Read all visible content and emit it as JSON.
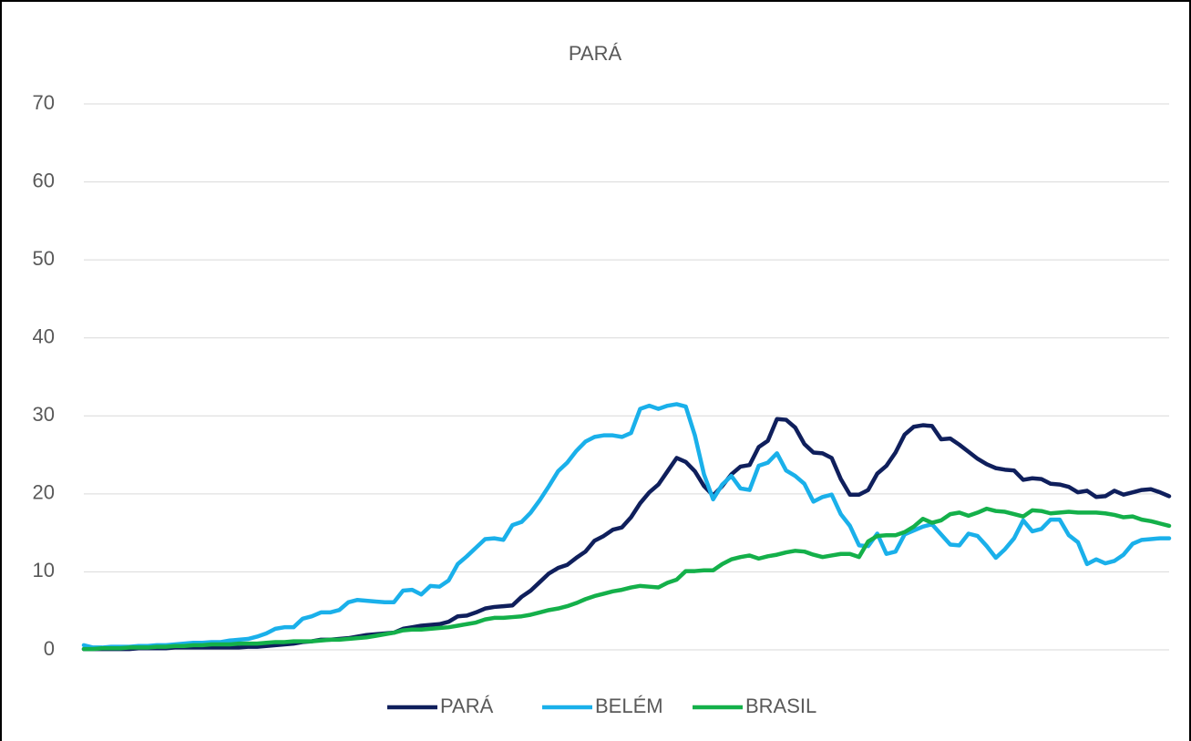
{
  "chart_data": {
    "type": "line",
    "title": "PARÁ",
    "categories": [
      null,
      null,
      null,
      null,
      null,
      null,
      null,
      null,
      null,
      null,
      null,
      null,
      null,
      null,
      null,
      null,
      null,
      null,
      null,
      null,
      null,
      null,
      null,
      null,
      null,
      null,
      null,
      null,
      null,
      null,
      null,
      null,
      null,
      null,
      null,
      null,
      null,
      null,
      null,
      null,
      null,
      null,
      null,
      null,
      null,
      null,
      null,
      null,
      null,
      null,
      null,
      null,
      null,
      null,
      null,
      null,
      null,
      null,
      null,
      null,
      null,
      null,
      null,
      null,
      null,
      null,
      null,
      null,
      null,
      null,
      null,
      null,
      null,
      null,
      null,
      null,
      null,
      null,
      null,
      null,
      null,
      null,
      null,
      null,
      null,
      null,
      null,
      null,
      null,
      null,
      null,
      null,
      null,
      null,
      null,
      null,
      null,
      null,
      null,
      null,
      null,
      null,
      null,
      null,
      null,
      null,
      null,
      null,
      null,
      null,
      null,
      null,
      null,
      null,
      null,
      null,
      null,
      null,
      null,
      null
    ],
    "series": [
      {
        "name": "PARÁ",
        "color": "#0f1f5c",
        "values": [
          0.1,
          0.1,
          0.1,
          0.1,
          0.1,
          0.1,
          0.2,
          0.2,
          0.2,
          0.2,
          0.3,
          0.3,
          0.3,
          0.3,
          0.3,
          0.3,
          0.3,
          0.3,
          0.4,
          0.4,
          0.5,
          0.6,
          0.7,
          0.8,
          1.0,
          1.1,
          1.3,
          1.3,
          1.4,
          1.5,
          1.7,
          1.9,
          2.0,
          2.1,
          2.2,
          2.7,
          2.9,
          3.1,
          3.2,
          3.3,
          3.6,
          4.3,
          4.4,
          4.8,
          5.3,
          5.5,
          5.6,
          5.7,
          6.8,
          7.6,
          8.7,
          9.8,
          10.5,
          10.9,
          11.8,
          12.6,
          14.0,
          14.6,
          15.4,
          15.7,
          17.0,
          18.8,
          20.2,
          21.2,
          22.9,
          24.6,
          24.1,
          22.9,
          21.0,
          19.8,
          21.0,
          22.5,
          23.5,
          23.7,
          26.0,
          26.8,
          29.6,
          29.5,
          28.5,
          26.4,
          25.3,
          25.2,
          24.6,
          21.9,
          19.9,
          19.9,
          20.5,
          22.6,
          23.6,
          25.3,
          27.6,
          28.6,
          28.8,
          28.7,
          27.0,
          27.1,
          26.3,
          25.4,
          24.5,
          23.8,
          23.3,
          23.1,
          23.0,
          21.8,
          22.0,
          21.9,
          21.3,
          21.2,
          20.9,
          20.2,
          20.4,
          19.6,
          19.7,
          20.4,
          19.9,
          20.2,
          20.5,
          20.6,
          20.2,
          19.7
        ]
      },
      {
        "name": "BELÉM",
        "color": "#1ab0ea",
        "values": [
          0.6,
          0.3,
          0.3,
          0.4,
          0.4,
          0.4,
          0.5,
          0.5,
          0.6,
          0.6,
          0.7,
          0.8,
          0.9,
          0.9,
          1.0,
          1.0,
          1.2,
          1.3,
          1.4,
          1.7,
          2.1,
          2.7,
          2.9,
          2.9,
          4.0,
          4.3,
          4.8,
          4.8,
          5.1,
          6.1,
          6.4,
          6.3,
          6.2,
          6.1,
          6.1,
          7.6,
          7.7,
          7.1,
          8.2,
          8.1,
          8.9,
          11.0,
          12.0,
          13.1,
          14.2,
          14.3,
          14.1,
          16.0,
          16.4,
          17.6,
          19.2,
          21.0,
          22.9,
          24.0,
          25.5,
          26.7,
          27.3,
          27.5,
          27.5,
          27.3,
          27.8,
          30.9,
          31.3,
          30.9,
          31.3,
          31.5,
          31.2,
          27.5,
          22.5,
          19.3,
          21.2,
          22.3,
          20.7,
          20.5,
          23.6,
          24.0,
          25.2,
          23.0,
          22.3,
          21.3,
          19.0,
          19.6,
          19.9,
          17.4,
          15.9,
          13.4,
          13.3,
          14.9,
          12.3,
          12.6,
          14.8,
          15.3,
          15.8,
          16.1,
          14.8,
          13.5,
          13.4,
          14.9,
          14.6,
          13.3,
          11.8,
          12.9,
          14.3,
          16.6,
          15.2,
          15.5,
          16.7,
          16.7,
          14.7,
          13.8,
          11.0,
          11.6,
          11.1,
          11.4,
          12.2,
          13.6,
          14.1,
          14.2,
          14.3,
          14.3
        ]
      },
      {
        "name": "BRASIL",
        "color": "#14b04a",
        "values": [
          0.1,
          0.1,
          0.2,
          0.2,
          0.2,
          0.3,
          0.3,
          0.3,
          0.4,
          0.4,
          0.5,
          0.5,
          0.6,
          0.6,
          0.7,
          0.7,
          0.7,
          0.8,
          0.8,
          0.8,
          0.9,
          1.0,
          1.0,
          1.1,
          1.1,
          1.1,
          1.2,
          1.3,
          1.3,
          1.4,
          1.5,
          1.6,
          1.8,
          2.0,
          2.2,
          2.5,
          2.6,
          2.6,
          2.7,
          2.8,
          2.9,
          3.1,
          3.3,
          3.5,
          3.9,
          4.1,
          4.1,
          4.2,
          4.3,
          4.5,
          4.8,
          5.1,
          5.3,
          5.6,
          6.0,
          6.5,
          6.9,
          7.2,
          7.5,
          7.7,
          8.0,
          8.2,
          8.1,
          8.0,
          8.6,
          9.0,
          10.1,
          10.1,
          10.2,
          10.2,
          11.0,
          11.6,
          11.9,
          12.1,
          11.7,
          12.0,
          12.2,
          12.5,
          12.7,
          12.6,
          12.2,
          11.9,
          12.1,
          12.3,
          12.3,
          11.9,
          13.9,
          14.6,
          14.7,
          14.7,
          15.1,
          15.8,
          16.8,
          16.3,
          16.6,
          17.4,
          17.6,
          17.2,
          17.6,
          18.1,
          17.8,
          17.7,
          17.4,
          17.1,
          17.9,
          17.8,
          17.5,
          17.6,
          17.7,
          17.6,
          17.6,
          17.6,
          17.5,
          17.3,
          17.0,
          17.1,
          16.7,
          16.5,
          16.2,
          15.9
        ]
      }
    ],
    "ylim": [
      0,
      70
    ],
    "yticks": [
      0,
      10,
      20,
      30,
      40,
      50,
      60,
      70
    ],
    "grid": true,
    "legend": "bottom"
  }
}
